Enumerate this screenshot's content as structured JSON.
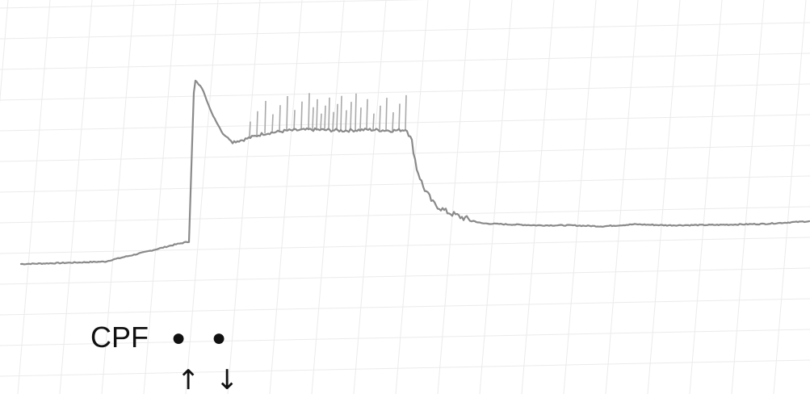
{
  "chart_data": {
    "type": "line",
    "title": "",
    "xlabel": "",
    "ylabel": "",
    "grid": true,
    "annotations": {
      "label": "CPF",
      "marker": "●",
      "up_arrow": "↑",
      "down_arrow": "↓"
    },
    "series": [
      {
        "color": "#8a8a8a",
        "points": [
          [
            0,
            0.0
          ],
          [
            50,
            0.5
          ],
          [
            105,
            1.2
          ],
          [
            110,
            1.8
          ],
          [
            150,
            5.5
          ],
          [
            190,
            9.5
          ],
          [
            208,
            11.0
          ],
          [
            212,
            60.0
          ],
          [
            214,
            84.0
          ],
          [
            216,
            90.0
          ],
          [
            225,
            86.0
          ],
          [
            235,
            75.0
          ],
          [
            250,
            64.0
          ],
          [
            262,
            60.0
          ],
          [
            275,
            61.0
          ],
          [
            300,
            64.0
          ],
          [
            330,
            65.5
          ],
          [
            360,
            66.0
          ],
          [
            400,
            65.5
          ],
          [
            430,
            66.0
          ],
          [
            460,
            65.5
          ],
          [
            478,
            66.0
          ],
          [
            484,
            60.0
          ],
          [
            490,
            47.0
          ],
          [
            498,
            38.0
          ],
          [
            510,
            30.0
          ],
          [
            525,
            26.0
          ],
          [
            545,
            23.0
          ],
          [
            570,
            20.0
          ],
          [
            600,
            19.5
          ],
          [
            640,
            19.0
          ],
          [
            680,
            19.0
          ],
          [
            720,
            18.5
          ],
          [
            760,
            19.5
          ],
          [
            800,
            19.0
          ],
          [
            860,
            19.2
          ],
          [
            920,
            19.7
          ],
          [
            976,
            21.0
          ]
        ]
      }
    ],
    "spikes_x": [
      283,
      292,
      302,
      311,
      320,
      329,
      338,
      347,
      356,
      361,
      366,
      371,
      376,
      381,
      386,
      391,
      396,
      402,
      408,
      414,
      420,
      428,
      436,
      444,
      452,
      460,
      468,
      476
    ]
  }
}
